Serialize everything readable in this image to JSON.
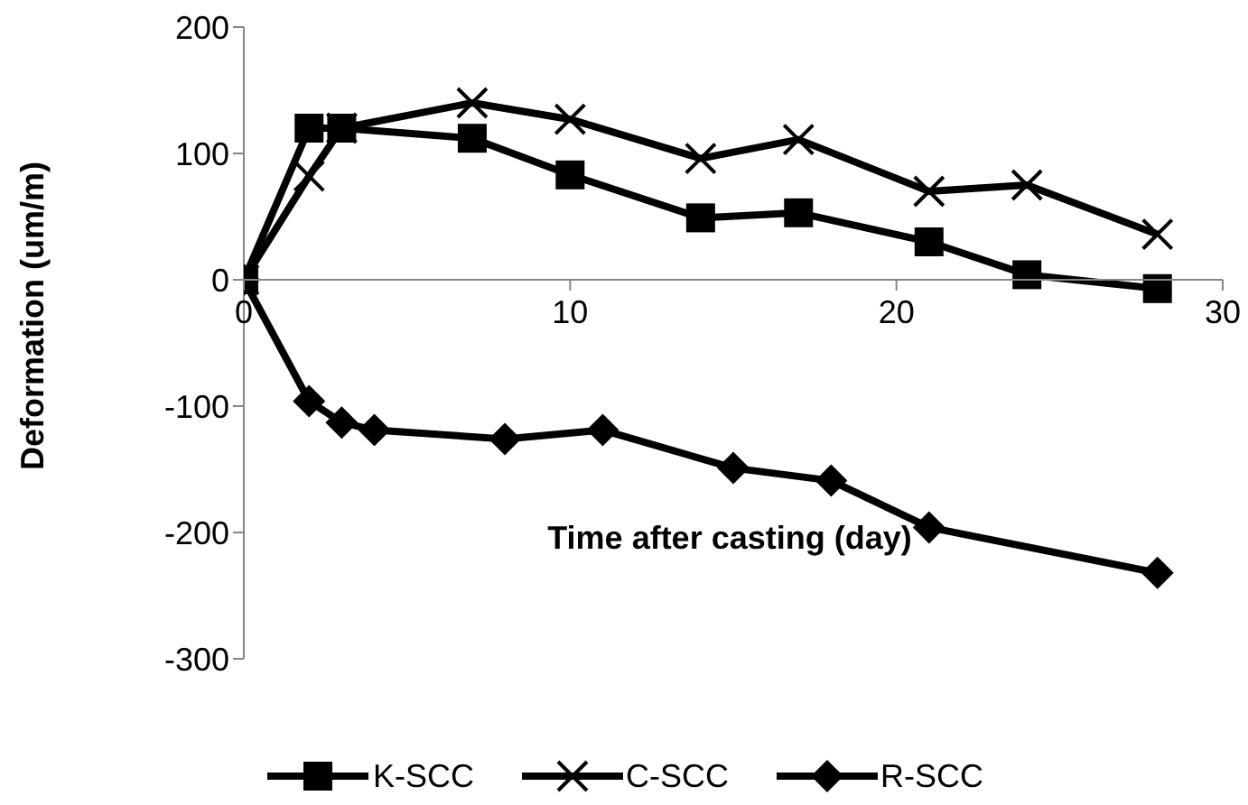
{
  "chart_data": {
    "type": "line",
    "xlabel": "Time after casting (day)",
    "ylabel": "Deformation (um/m)",
    "xlim": [
      0,
      30
    ],
    "xticks": [
      0,
      10,
      20,
      30
    ],
    "ylim": [
      -300,
      200
    ],
    "yticks": [
      -300,
      -200,
      -100,
      0,
      100,
      200
    ],
    "grid": false,
    "legend": "bottom",
    "line_style": "solid",
    "series": [
      {
        "name": "K-SCC",
        "color": "#000000",
        "marker": "square",
        "x": [
          0,
          2,
          3,
          7,
          10,
          14,
          17,
          21,
          24,
          28
        ],
        "values": [
          0,
          120,
          120,
          112,
          83,
          49,
          53,
          30,
          4,
          -7
        ]
      },
      {
        "name": "C-SCC",
        "color": "#000000",
        "marker": "cross",
        "x": [
          0,
          2,
          3,
          7,
          10,
          14,
          17,
          21,
          24,
          28
        ],
        "values": [
          0,
          82,
          120,
          140,
          127,
          96,
          111,
          70,
          75,
          36
        ]
      },
      {
        "name": "R-SCC",
        "color": "#000000",
        "marker": "diamond",
        "x": [
          0,
          2,
          3,
          4,
          8,
          11,
          15,
          18,
          21,
          28
        ],
        "values": [
          0,
          -96,
          -113,
          -119,
          -126,
          -119,
          -149,
          -159,
          -196,
          -232
        ]
      }
    ]
  }
}
